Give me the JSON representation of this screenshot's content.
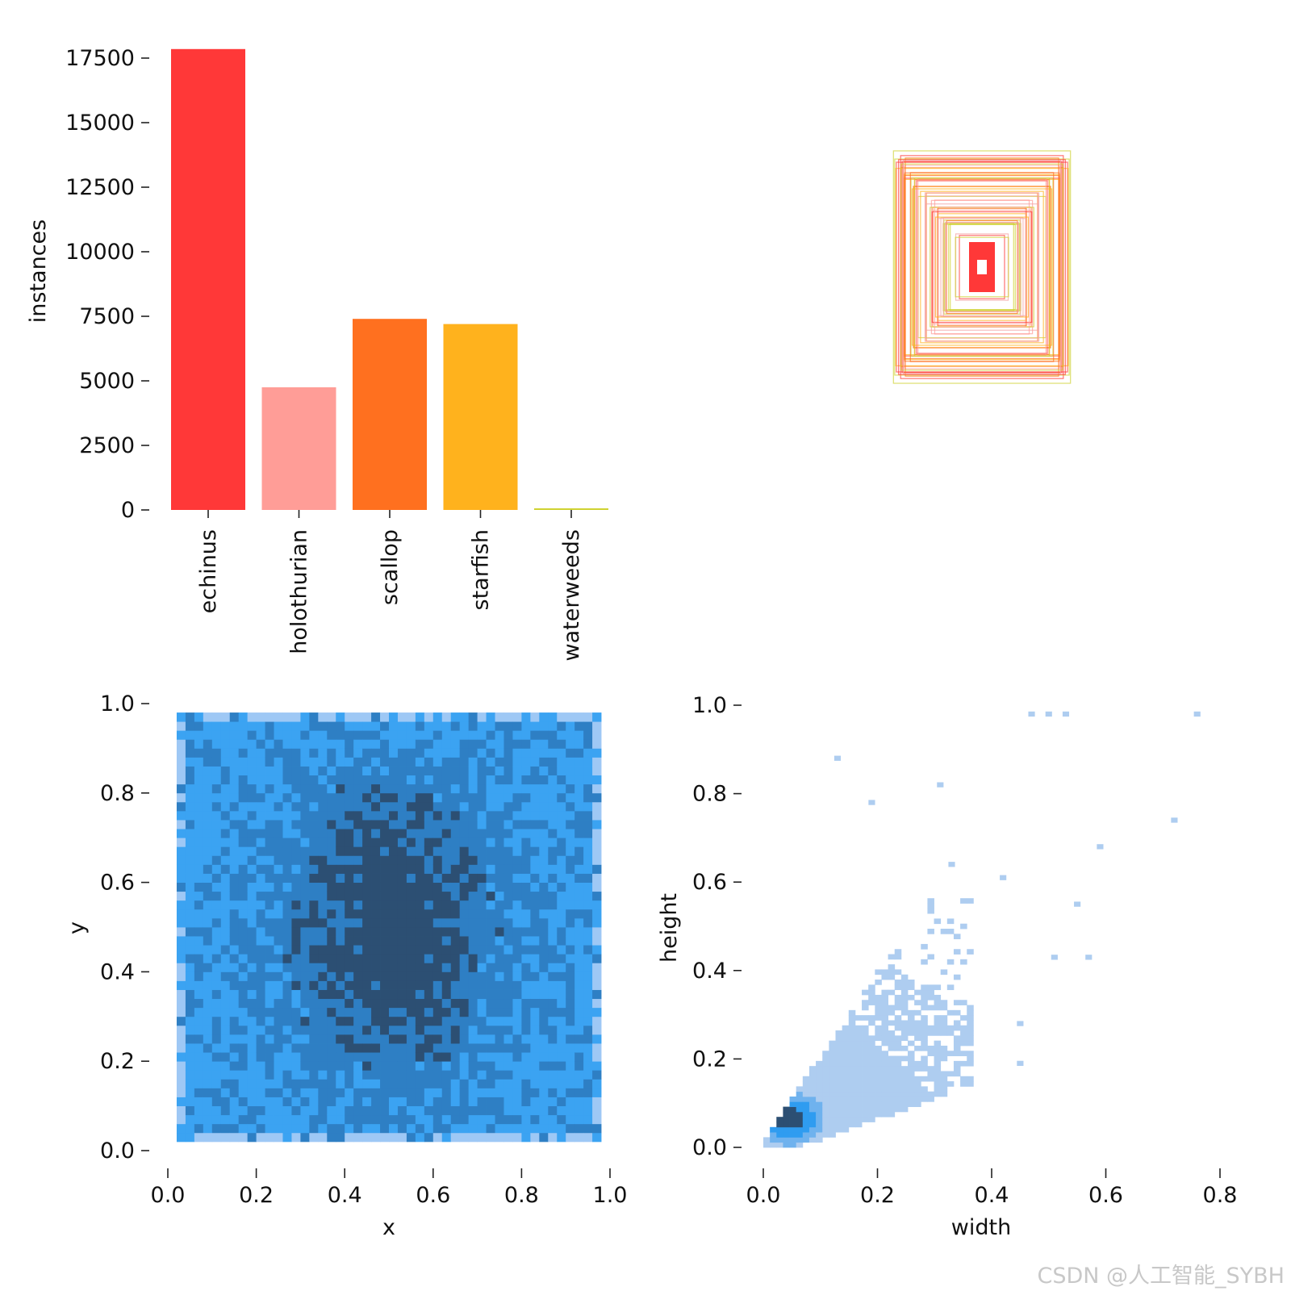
{
  "watermark": "CSDN @人工智能_SYBH",
  "chart_data": [
    {
      "type": "bar",
      "panel": "top-left",
      "categories": [
        "echinus",
        "holothurian",
        "scallop",
        "starfish",
        "waterweeds"
      ],
      "values": [
        17850,
        4750,
        7400,
        7200,
        50
      ],
      "colors": [
        "#FF3838",
        "#FF9D97",
        "#FF701F",
        "#FFB21D",
        "#CFD231"
      ],
      "ylabel": "instances",
      "ylim": [
        0,
        18500
      ],
      "yticks": [
        0,
        2500,
        5000,
        7500,
        10000,
        12500,
        15000,
        17500
      ],
      "ytick_labels": [
        "0",
        "2500",
        "5000",
        "7500",
        "10000",
        "12500",
        "15000",
        "17500"
      ]
    },
    {
      "type": "box_overlay",
      "panel": "top-right",
      "title": "",
      "description": "centered bounding boxes of labels",
      "box_count": 60,
      "palette": [
        "#FF3838",
        "#FF9D97",
        "#FF701F",
        "#FFB21D",
        "#CFD231",
        "#F4A3A3"
      ]
    },
    {
      "type": "heatmap",
      "panel": "bottom-left",
      "xlabel": "x",
      "ylabel": "y",
      "xlim": [
        0,
        1
      ],
      "ylim": [
        0,
        1
      ],
      "xticks": [
        0.0,
        0.2,
        0.4,
        0.6,
        0.8,
        1.0
      ],
      "xtick_labels": [
        "0.0",
        "0.2",
        "0.4",
        "0.6",
        "0.8",
        "1.0"
      ],
      "yticks": [
        0.0,
        0.2,
        0.4,
        0.6,
        0.8,
        1.0
      ],
      "ytick_labels": [
        "0.0",
        "0.2",
        "0.4",
        "0.6",
        "0.8",
        "1.0"
      ],
      "data_xrange": [
        0.02,
        0.98
      ],
      "data_yrange": [
        0.02,
        0.98
      ],
      "density_peak": [
        0.5,
        0.5
      ],
      "colors": [
        "#9ec8f5",
        "#3ba3f2",
        "#2e7fc4",
        "#2c4f73"
      ]
    },
    {
      "type": "heatmap",
      "panel": "bottom-right",
      "xlabel": "width",
      "ylabel": "height",
      "xlim": [
        0,
        0.8
      ],
      "ylim": [
        0,
        1
      ],
      "xticks": [
        0.0,
        0.2,
        0.4,
        0.6,
        0.8
      ],
      "xtick_labels": [
        "0.0",
        "0.2",
        "0.4",
        "0.6",
        "0.8"
      ],
      "yticks": [
        0.0,
        0.2,
        0.4,
        0.6,
        0.8,
        1.0
      ],
      "ytick_labels": [
        "0.0",
        "0.2",
        "0.4",
        "0.6",
        "0.8",
        "1.0"
      ],
      "density_peak": [
        0.04,
        0.06
      ],
      "outliers": [
        [
          0.47,
          0.98
        ],
        [
          0.5,
          0.98
        ],
        [
          0.53,
          0.98
        ],
        [
          0.76,
          0.98
        ],
        [
          0.13,
          0.88
        ],
        [
          0.31,
          0.82
        ],
        [
          0.19,
          0.78
        ],
        [
          0.72,
          0.74
        ],
        [
          0.59,
          0.68
        ],
        [
          0.33,
          0.64
        ],
        [
          0.42,
          0.61
        ],
        [
          0.55,
          0.55
        ],
        [
          0.51,
          0.43
        ],
        [
          0.57,
          0.43
        ],
        [
          0.45,
          0.28
        ],
        [
          0.45,
          0.19
        ]
      ],
      "colors": [
        "#aecdf0",
        "#6fb2ee",
        "#2f9cf0",
        "#2c4f73"
      ]
    }
  ]
}
